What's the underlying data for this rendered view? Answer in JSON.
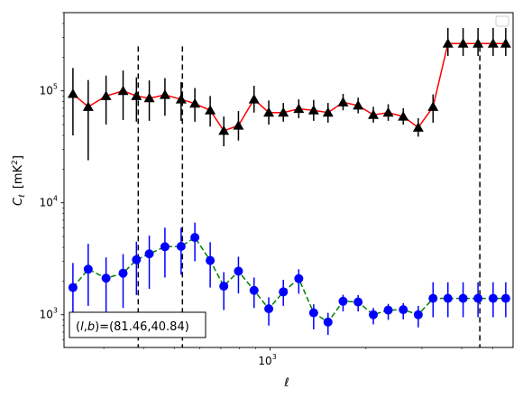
{
  "chart_data": {
    "type": "scatter",
    "xscale": "log",
    "yscale": "log",
    "xlim": [
      225,
      5800
    ],
    "ylim": [
      510,
      500000
    ],
    "xlabel": "ℓ",
    "ylabel_main": "C",
    "ylabel_sub": "ℓ",
    "ylabel_units": "[mK",
    "ylabel_units_sup": "2",
    "ylabel_units_close": "]",
    "xticks": [
      {
        "value": 1000,
        "base": "10",
        "exp": "3"
      }
    ],
    "yticks": [
      {
        "value": 1000,
        "base": "10",
        "exp": "3"
      },
      {
        "value": 10000,
        "base": "10",
        "exp": "4"
      },
      {
        "value": 100000,
        "base": "10",
        "exp": "5"
      }
    ],
    "legend": "top-right",
    "grid": false,
    "vlines": [
      {
        "x": 385,
        "ymin": 510,
        "ymax": 250000
      },
      {
        "x": 530,
        "ymin": 510,
        "ymax": 250000
      },
      {
        "x": 4560,
        "ymin": 510,
        "ymax": 250000
      }
    ],
    "annotation": {
      "prefix": "(",
      "l": "l",
      "comma": ",",
      "b": "b",
      "suffix": ")=(81.46,40.84)",
      "position": "bottom-left"
    },
    "series": [
      {
        "color": "#000000",
        "line_color": "#ff0000",
        "line_style": "solid",
        "marker": "triangle",
        "x": [
          240,
          268,
          305,
          345,
          380,
          417,
          467,
          525,
          580,
          648,
          715,
          795,
          890,
          990,
          1100,
          1230,
          1370,
          1520,
          1695,
          1890,
          2110,
          2350,
          2620,
          2920,
          3250,
          3620,
          4040,
          4500,
          5020,
          5500
        ],
        "y": [
          94000,
          72000,
          90000,
          100000,
          90000,
          86000,
          92000,
          84000,
          77000,
          67000,
          44000,
          49000,
          84000,
          64000,
          64000,
          69000,
          67000,
          64000,
          79000,
          74000,
          61000,
          64000,
          59000,
          47000,
          72000,
          265000,
          265000,
          265000,
          265000,
          265000
        ],
        "err_lo": [
          54000,
          48000,
          40000,
          45000,
          37000,
          32000,
          32000,
          30000,
          24000,
          19000,
          12000,
          13000,
          20000,
          14000,
          11000,
          12000,
          13000,
          12000,
          12000,
          11000,
          9000,
          10000,
          9000,
          8000,
          20000,
          60000,
          60000,
          60000,
          60000,
          60000
        ],
        "err_hi": [
          66000,
          53000,
          47000,
          52000,
          42000,
          38000,
          38000,
          36000,
          29000,
          23000,
          15000,
          17000,
          27000,
          18000,
          14000,
          15000,
          16000,
          14000,
          15000,
          13000,
          11000,
          12000,
          11000,
          10000,
          21000,
          100000,
          100000,
          100000,
          100000,
          100000
        ]
      },
      {
        "color": "#0000ff",
        "line_color": "#008000",
        "line_style": "dashed",
        "marker": "circle",
        "x": [
          240,
          268,
          305,
          345,
          380,
          417,
          467,
          525,
          580,
          648,
          715,
          795,
          890,
          990,
          1100,
          1230,
          1370,
          1520,
          1695,
          1890,
          2110,
          2350,
          2620,
          2920,
          3250,
          3620,
          4040,
          4500,
          5020,
          5500
        ],
        "y": [
          1750,
          2550,
          2120,
          2350,
          3100,
          3500,
          4050,
          4080,
          4900,
          3050,
          1800,
          2450,
          1650,
          1130,
          1600,
          2100,
          1040,
          860,
          1320,
          1300,
          1000,
          1100,
          1110,
          1000,
          1400,
          1400,
          1400,
          1400,
          1400,
          1400
        ],
        "err_lo": [
          1050,
          1350,
          1200,
          1200,
          1600,
          1800,
          1900,
          1800,
          1900,
          1300,
          700,
          900,
          500,
          330,
          400,
          560,
          300,
          200,
          250,
          230,
          180,
          200,
          200,
          230,
          450,
          450,
          450,
          450,
          450,
          450
        ],
        "err_hi": [
          1150,
          1750,
          1130,
          1130,
          1400,
          1600,
          1950,
          1900,
          1750,
          1400,
          600,
          850,
          500,
          300,
          450,
          450,
          200,
          180,
          190,
          200,
          150,
          150,
          160,
          200,
          550,
          550,
          550,
          550,
          550,
          550
        ]
      }
    ]
  }
}
